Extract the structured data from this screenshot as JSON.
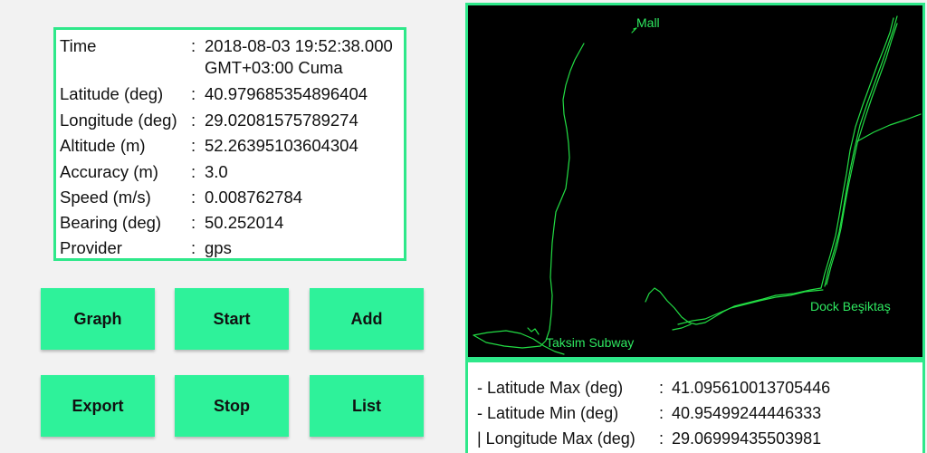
{
  "info": {
    "rows": [
      {
        "label": "Time",
        "sep": ":",
        "value": "2018-08-03 19:52:38.000",
        "value2": "GMT+03:00 Cuma"
      },
      {
        "label": "Latitude (deg)",
        "sep": ":",
        "value": "40.979685354896404"
      },
      {
        "label": "Longitude (deg)",
        "sep": ":",
        "value": "29.02081575789274"
      },
      {
        "label": "Altitude (m)",
        "sep": ":",
        "value": "52.26395103604304"
      },
      {
        "label": "Accuracy (m)",
        "sep": ":",
        "value": "3.0"
      },
      {
        "label": "Speed (m/s)",
        "sep": ":",
        "value": "0.008762784"
      },
      {
        "label": "Bearing (deg)",
        "sep": ":",
        "value": "50.252014"
      },
      {
        "label": "Provider",
        "sep": ":",
        "value": "gps"
      }
    ]
  },
  "buttons": {
    "graph": "Graph",
    "start": "Start",
    "add": "Add",
    "export": "Export",
    "stop": "Stop",
    "list": "List"
  },
  "map": {
    "labels": {
      "mall": "Mall",
      "dock": "Dock Beşiktaş",
      "taksim": "Taksim Subway"
    },
    "track_color": "#22dd44"
  },
  "stats": {
    "rows": [
      {
        "label": "- Latitude Max (deg)",
        "sep": ":",
        "value": "41.095610013705446"
      },
      {
        "label": "- Latitude Min (deg)",
        "sep": ":",
        "value": "40.95499244446333"
      },
      {
        "label": "| Longitude Max (deg)",
        "sep": ":",
        "value": "29.06999435503981"
      }
    ]
  }
}
